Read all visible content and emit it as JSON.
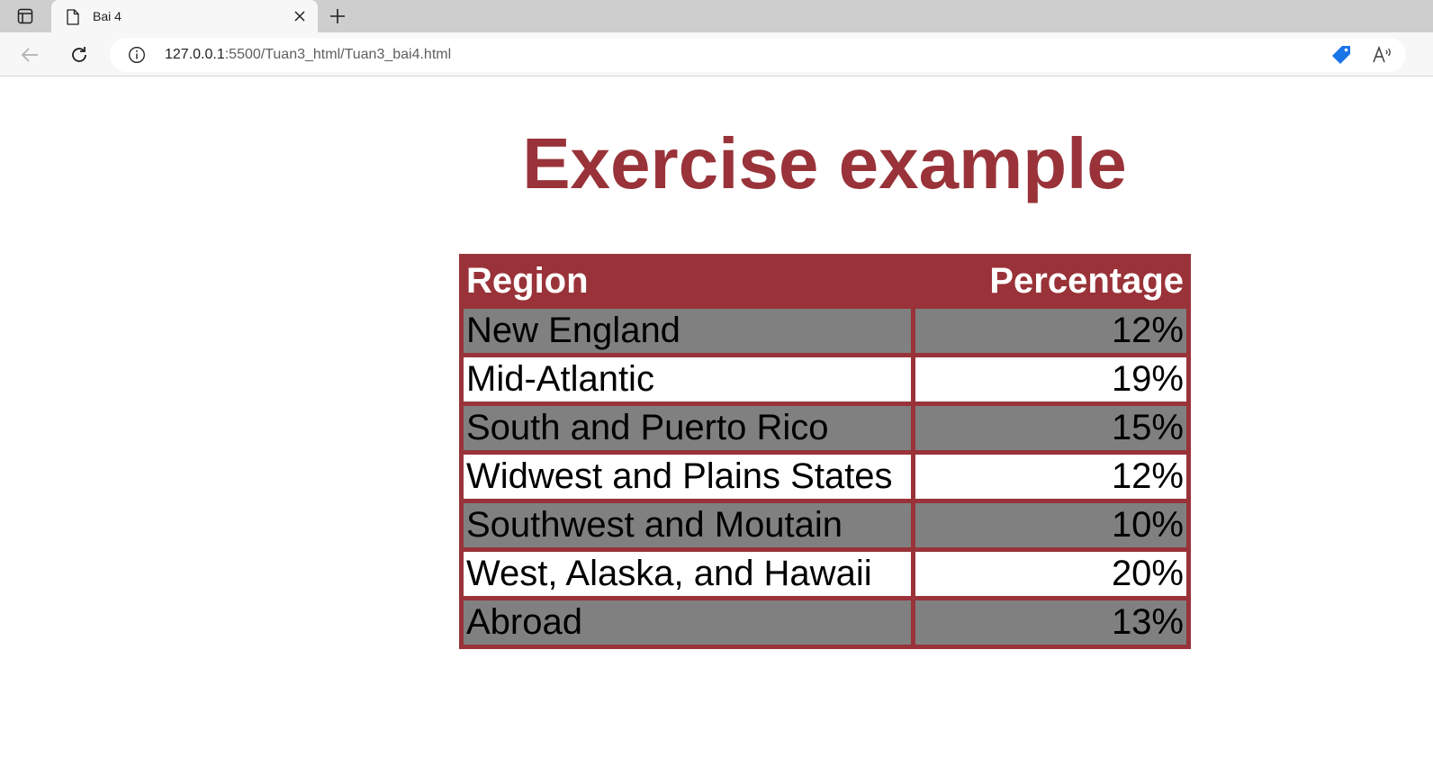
{
  "browser": {
    "tab": {
      "title": "Bai 4",
      "icon": "page-icon"
    },
    "address": {
      "host": "127.0.0.1",
      "path": ":5500/Tuan3_html/Tuan3_bai4.html"
    },
    "colors": {
      "tab_strip": "#cecece",
      "toolbar": "#f7f7f7",
      "tag_icon": "#1a73e8"
    }
  },
  "page": {
    "title": "Exercise example",
    "colors": {
      "accent": "#993339",
      "row_alt": "#808080",
      "row_plain": "#ffffff"
    },
    "table": {
      "headers": {
        "region": "Region",
        "percentage": "Percentage"
      },
      "rows": [
        {
          "region": "New England",
          "percentage": "12%"
        },
        {
          "region": "Mid-Atlantic",
          "percentage": "19%"
        },
        {
          "region": "South and Puerto Rico",
          "percentage": "15%"
        },
        {
          "region": "Widwest and Plains States",
          "percentage": "12%"
        },
        {
          "region": "Southwest and Moutain",
          "percentage": "10%"
        },
        {
          "region": "West, Alaska, and Hawaii",
          "percentage": "20%"
        },
        {
          "region": "Abroad",
          "percentage": "13%"
        }
      ]
    }
  }
}
